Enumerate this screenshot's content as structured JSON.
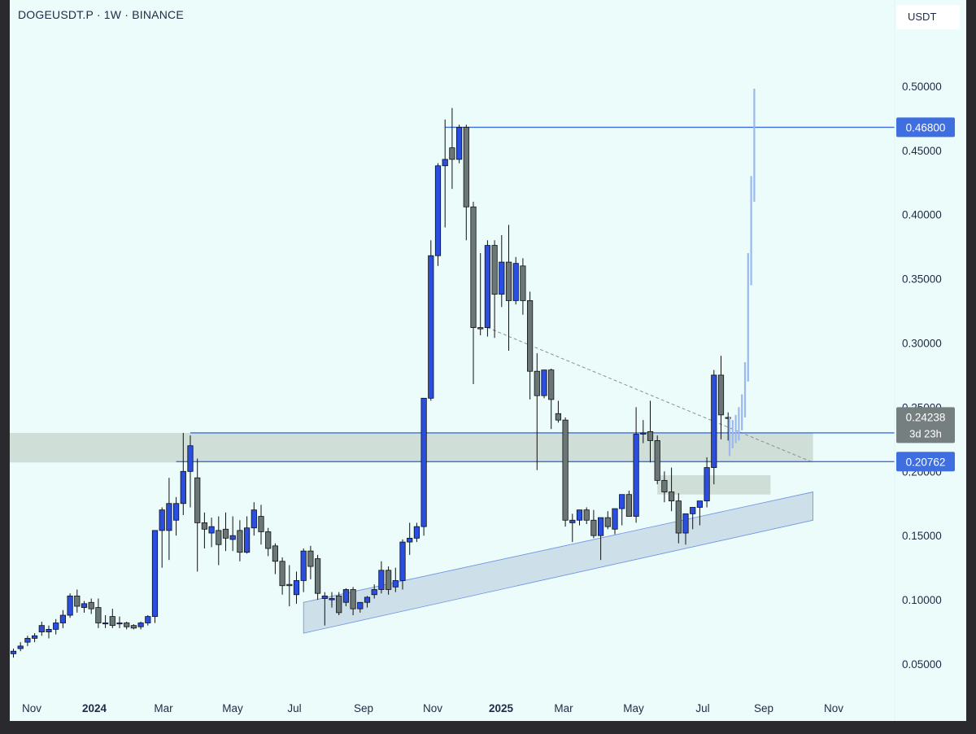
{
  "header": {
    "symbol_title": "DOGEUSDT.P · 1W · BINANCE",
    "currency": "USDT"
  },
  "colors": {
    "background": "#ebfcfb",
    "bull": "#2a4ee0",
    "bear": "#6b7676",
    "level_line": "#3f6ee0",
    "zone": "#c9d6d0",
    "channel": "#c3d6e2",
    "projection": "#9bb8f0"
  },
  "chart_data": {
    "type": "candlestick",
    "title": "DOGEUSDT.P · 1W · BINANCE",
    "ylabel": "USDT",
    "ylim": [
      0.0,
      0.52
    ],
    "grid": false,
    "y_ticks": [
      "0.05000",
      "0.10000",
      "0.15000",
      "0.20000",
      "0.25000",
      "0.30000",
      "0.35000",
      "0.40000",
      "0.45000",
      "0.50000"
    ],
    "x_ticks": [
      {
        "label": "Nov",
        "bold": false
      },
      {
        "label": "2024",
        "bold": true
      },
      {
        "label": "Mar",
        "bold": false
      },
      {
        "label": "May",
        "bold": false
      },
      {
        "label": "Jul",
        "bold": false
      },
      {
        "label": "Sep",
        "bold": false
      },
      {
        "label": "Nov",
        "bold": false
      },
      {
        "label": "2025",
        "bold": true
      },
      {
        "label": "Mar",
        "bold": false
      },
      {
        "label": "May",
        "bold": false
      },
      {
        "label": "Jul",
        "bold": false
      },
      {
        "label": "Sep",
        "bold": false
      },
      {
        "label": "Nov",
        "bold": false
      }
    ],
    "candles": [
      [
        0.058,
        0.062,
        0.06,
        0.055
      ],
      [
        0.062,
        0.067,
        0.064,
        0.06
      ],
      [
        0.067,
        0.072,
        0.07,
        0.064
      ],
      [
        0.07,
        0.074,
        0.072,
        0.067
      ],
      [
        0.075,
        0.083,
        0.08,
        0.072
      ],
      [
        0.075,
        0.08,
        0.077,
        0.07
      ],
      [
        0.077,
        0.085,
        0.082,
        0.073
      ],
      [
        0.082,
        0.092,
        0.088,
        0.078
      ],
      [
        0.088,
        0.105,
        0.103,
        0.086
      ],
      [
        0.103,
        0.108,
        0.095,
        0.09
      ],
      [
        0.094,
        0.099,
        0.097,
        0.09
      ],
      [
        0.098,
        0.101,
        0.093,
        0.089
      ],
      [
        0.094,
        0.101,
        0.082,
        0.078
      ],
      [
        0.082,
        0.088,
        0.082,
        0.078
      ],
      [
        0.087,
        0.093,
        0.08,
        0.078
      ],
      [
        0.082,
        0.087,
        0.082,
        0.078
      ],
      [
        0.082,
        0.083,
        0.079,
        0.077
      ],
      [
        0.08,
        0.081,
        0.078,
        0.077
      ],
      [
        0.079,
        0.083,
        0.082,
        0.077
      ],
      [
        0.082,
        0.088,
        0.087,
        0.08
      ],
      [
        0.087,
        0.152,
        0.154,
        0.082
      ],
      [
        0.154,
        0.172,
        0.17,
        0.125
      ],
      [
        0.154,
        0.195,
        0.175,
        0.131
      ],
      [
        0.162,
        0.18,
        0.175,
        0.15
      ],
      [
        0.175,
        0.23,
        0.2,
        0.166
      ],
      [
        0.2,
        0.228,
        0.22,
        0.172
      ],
      [
        0.195,
        0.21,
        0.16,
        0.122
      ],
      [
        0.16,
        0.168,
        0.155,
        0.14
      ],
      [
        0.152,
        0.164,
        0.157,
        0.141
      ],
      [
        0.154,
        0.165,
        0.143,
        0.127
      ],
      [
        0.155,
        0.168,
        0.148,
        0.138
      ],
      [
        0.147,
        0.165,
        0.15,
        0.138
      ],
      [
        0.154,
        0.162,
        0.137,
        0.13
      ],
      [
        0.137,
        0.165,
        0.156,
        0.136
      ],
      [
        0.156,
        0.176,
        0.17,
        0.15
      ],
      [
        0.165,
        0.174,
        0.153,
        0.143
      ],
      [
        0.153,
        0.156,
        0.14,
        0.134
      ],
      [
        0.142,
        0.144,
        0.13,
        0.12
      ],
      [
        0.13,
        0.133,
        0.111,
        0.104
      ],
      [
        0.112,
        0.127,
        0.111,
        0.095
      ],
      [
        0.104,
        0.122,
        0.115,
        0.097
      ],
      [
        0.115,
        0.14,
        0.138,
        0.106
      ],
      [
        0.138,
        0.142,
        0.126,
        0.116
      ],
      [
        0.132,
        0.135,
        0.105,
        0.1
      ],
      [
        0.101,
        0.106,
        0.103,
        0.08
      ],
      [
        0.1,
        0.106,
        0.101,
        0.094
      ],
      [
        0.103,
        0.106,
        0.09,
        0.088
      ],
      [
        0.098,
        0.109,
        0.108,
        0.095
      ],
      [
        0.108,
        0.11,
        0.093,
        0.088
      ],
      [
        0.093,
        0.098,
        0.098,
        0.09
      ],
      [
        0.098,
        0.103,
        0.102,
        0.094
      ],
      [
        0.104,
        0.112,
        0.108,
        0.101
      ],
      [
        0.108,
        0.13,
        0.123,
        0.105
      ],
      [
        0.123,
        0.126,
        0.108,
        0.104
      ],
      [
        0.11,
        0.125,
        0.115,
        0.106
      ],
      [
        0.115,
        0.147,
        0.145,
        0.108
      ],
      [
        0.145,
        0.16,
        0.148,
        0.135
      ],
      [
        0.148,
        0.16,
        0.157,
        0.145
      ],
      [
        0.157,
        0.25,
        0.257,
        0.15
      ],
      [
        0.257,
        0.38,
        0.368,
        0.255
      ],
      [
        0.368,
        0.44,
        0.438,
        0.36
      ],
      [
        0.438,
        0.474,
        0.443,
        0.39
      ],
      [
        0.452,
        0.483,
        0.443,
        0.42
      ],
      [
        0.443,
        0.47,
        0.468,
        0.44
      ],
      [
        0.468,
        0.47,
        0.406,
        0.38
      ],
      [
        0.406,
        0.41,
        0.312,
        0.268
      ],
      [
        0.312,
        0.37,
        0.311,
        0.306
      ],
      [
        0.312,
        0.38,
        0.376,
        0.305
      ],
      [
        0.376,
        0.38,
        0.338,
        0.304
      ],
      [
        0.338,
        0.384,
        0.363,
        0.328
      ],
      [
        0.363,
        0.392,
        0.333,
        0.294
      ],
      [
        0.333,
        0.367,
        0.362,
        0.33
      ],
      [
        0.36,
        0.366,
        0.333,
        0.322
      ],
      [
        0.333,
        0.34,
        0.278,
        0.256
      ],
      [
        0.278,
        0.292,
        0.259,
        0.201
      ],
      [
        0.259,
        0.277,
        0.279,
        0.257
      ],
      [
        0.279,
        0.28,
        0.256,
        0.233
      ],
      [
        0.245,
        0.255,
        0.24,
        0.238
      ],
      [
        0.24,
        0.242,
        0.162,
        0.157
      ],
      [
        0.16,
        0.167,
        0.162,
        0.145
      ],
      [
        0.162,
        0.169,
        0.17,
        0.158
      ],
      [
        0.17,
        0.172,
        0.162,
        0.159
      ],
      [
        0.162,
        0.17,
        0.15,
        0.148
      ],
      [
        0.15,
        0.164,
        0.164,
        0.131
      ],
      [
        0.164,
        0.169,
        0.157,
        0.155
      ],
      [
        0.155,
        0.168,
        0.171,
        0.151
      ],
      [
        0.171,
        0.174,
        0.182,
        0.158
      ],
      [
        0.182,
        0.185,
        0.165,
        0.165
      ],
      [
        0.165,
        0.25,
        0.229,
        0.16
      ],
      [
        0.229,
        0.24,
        0.23,
        0.222
      ],
      [
        0.231,
        0.255,
        0.224,
        0.207
      ],
      [
        0.224,
        0.228,
        0.193,
        0.19
      ],
      [
        0.193,
        0.2,
        0.184,
        0.176
      ],
      [
        0.184,
        0.203,
        0.177,
        0.169
      ],
      [
        0.177,
        0.183,
        0.152,
        0.144
      ],
      [
        0.152,
        0.165,
        0.167,
        0.143
      ],
      [
        0.167,
        0.17,
        0.172,
        0.155
      ],
      [
        0.172,
        0.175,
        0.177,
        0.158
      ],
      [
        0.177,
        0.211,
        0.203,
        0.172
      ],
      [
        0.203,
        0.279,
        0.275,
        0.19
      ],
      [
        0.275,
        0.29,
        0.244,
        0.225
      ],
      [
        0.242,
        0.246,
        0.242,
        0.224
      ]
    ],
    "levels": [
      {
        "price": 0.468,
        "label": "0.46800",
        "start_index": 61
      },
      {
        "price": 0.23,
        "label": "",
        "start_index": 25
      },
      {
        "price": 0.20762,
        "label": "0.20762",
        "start_index": 23
      }
    ],
    "current_price": {
      "price": 0.24238,
      "label": "0.24238",
      "countdown": "3d 23h"
    },
    "zones": [
      {
        "x_start": -1,
        "x_end": 113,
        "y_low": 0.207,
        "y_high": 0.23
      },
      {
        "x_start": 91,
        "x_end": 107,
        "y_low": 0.182,
        "y_high": 0.197
      }
    ],
    "channel": {
      "x0": 41,
      "x1": 113,
      "lower": [
        0.074,
        0.162
      ],
      "upper": [
        0.098,
        0.184
      ]
    },
    "trendline": {
      "x0": 67,
      "y0": 0.312,
      "x1": 113,
      "y1": 0.207
    },
    "projection": [
      [
        0.225,
        0.242,
        0.227,
        0.212
      ],
      [
        0.227,
        0.24,
        0.229,
        0.218
      ],
      [
        0.229,
        0.244,
        0.232,
        0.222
      ],
      [
        0.232,
        0.25,
        0.238,
        0.224
      ],
      [
        0.238,
        0.26,
        0.247,
        0.232
      ],
      [
        0.247,
        0.285,
        0.275,
        0.242
      ],
      [
        0.275,
        0.37,
        0.355,
        0.27
      ],
      [
        0.355,
        0.43,
        0.42,
        0.345
      ],
      [
        0.42,
        0.498,
        0.47,
        0.41
      ]
    ]
  }
}
